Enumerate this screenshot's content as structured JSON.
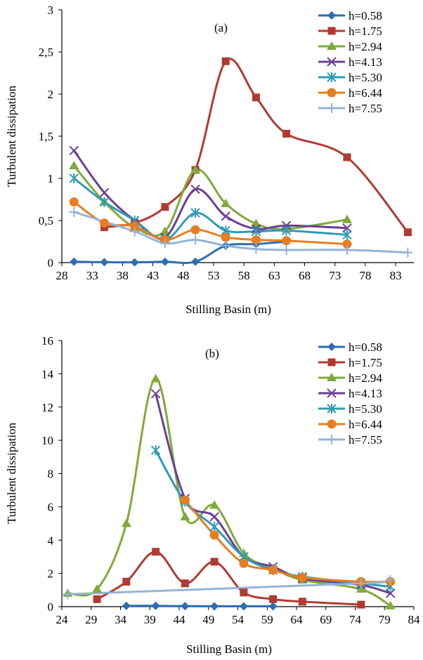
{
  "chart_data": [
    {
      "type": "line",
      "panel_label": "(a)",
      "xlabel": "Stilling Basin (m)",
      "ylabel": "Turbulent dissipation",
      "xlim": [
        28,
        86
      ],
      "ylim": [
        0,
        3
      ],
      "xticks": [
        "28",
        "33",
        "38",
        "43",
        "48",
        "53",
        "58",
        "63",
        "68",
        "73",
        "78",
        "83"
      ],
      "yticks": [
        "0",
        "0,5",
        "1",
        "1,5",
        "2",
        "2,5",
        "3"
      ],
      "legend_position": "top-right",
      "grid": false,
      "series": [
        {
          "name": "h=0.58",
          "color": "#2E6DB4",
          "marker": "diamond",
          "points": [
            [
              30,
              0.01
            ],
            [
              35,
              0.005
            ],
            [
              40,
              0.003
            ],
            [
              45,
              0.01
            ],
            [
              50,
              0.01
            ],
            [
              55,
              0.2
            ],
            [
              60,
              0.22
            ],
            [
              65,
              0.25
            ]
          ]
        },
        {
          "name": "h=1.75",
          "color": "#B03A32",
          "marker": "square",
          "points": [
            [
              35,
              0.42
            ],
            [
              40,
              0.47
            ],
            [
              45,
              0.66
            ],
            [
              50,
              1.1
            ],
            [
              55,
              2.39
            ],
            [
              60,
              1.96
            ],
            [
              65,
              1.53
            ],
            [
              75,
              1.25
            ],
            [
              85,
              0.36
            ]
          ]
        },
        {
          "name": "h=2.94",
          "color": "#7FAA3A",
          "marker": "triangle",
          "points": [
            [
              30,
              1.15
            ],
            [
              35,
              0.72
            ],
            [
              40,
              0.42
            ],
            [
              45,
              0.37
            ],
            [
              50,
              1.1
            ],
            [
              55,
              0.7
            ],
            [
              60,
              0.46
            ],
            [
              65,
              0.4
            ],
            [
              75,
              0.51
            ]
          ]
        },
        {
          "name": "h=4.13",
          "color": "#6A3F93",
          "marker": "x",
          "points": [
            [
              30,
              1.33
            ],
            [
              35,
              0.83
            ],
            [
              40,
              0.5
            ],
            [
              45,
              0.3
            ],
            [
              50,
              0.87
            ],
            [
              55,
              0.55
            ],
            [
              60,
              0.4
            ],
            [
              65,
              0.44
            ],
            [
              75,
              0.41
            ]
          ]
        },
        {
          "name": "h=5.30",
          "color": "#2F9BB5",
          "marker": "asterisk",
          "points": [
            [
              30,
              1.0
            ],
            [
              35,
              0.72
            ],
            [
              40,
              0.5
            ],
            [
              45,
              0.27
            ],
            [
              50,
              0.59
            ],
            [
              55,
              0.38
            ],
            [
              60,
              0.37
            ],
            [
              65,
              0.38
            ],
            [
              75,
              0.33
            ]
          ]
        },
        {
          "name": "h=6.44",
          "color": "#E67E22",
          "marker": "circle",
          "points": [
            [
              30,
              0.72
            ],
            [
              35,
              0.47
            ],
            [
              40,
              0.43
            ],
            [
              45,
              0.27
            ],
            [
              50,
              0.39
            ],
            [
              55,
              0.3
            ],
            [
              60,
              0.27
            ],
            [
              65,
              0.26
            ],
            [
              75,
              0.22
            ]
          ]
        },
        {
          "name": "h=7.55",
          "color": "#95B3D7",
          "marker": "plus",
          "points": [
            [
              30,
              0.6
            ],
            [
              40,
              0.37
            ],
            [
              45,
              0.23
            ],
            [
              50,
              0.27
            ],
            [
              55,
              0.2
            ],
            [
              60,
              0.16
            ],
            [
              65,
              0.15
            ],
            [
              75,
              0.15
            ],
            [
              85,
              0.12
            ]
          ]
        }
      ]
    },
    {
      "type": "line",
      "panel_label": "(b)",
      "xlabel": "Stilling Basin (m)",
      "ylabel": "Turbulent dissipation",
      "xlim": [
        24,
        84
      ],
      "ylim": [
        0,
        16
      ],
      "xticks": [
        "24",
        "29",
        "34",
        "39",
        "44",
        "49",
        "54",
        "59",
        "64",
        "69",
        "74",
        "79",
        "84"
      ],
      "yticks": [
        "0",
        "2",
        "4",
        "6",
        "8",
        "10",
        "12",
        "14",
        "16"
      ],
      "legend_position": "top-right",
      "grid": false,
      "series": [
        {
          "name": "h=0.58",
          "color": "#2E6DB4",
          "marker": "diamond",
          "points": [
            [
              35,
              0.05
            ],
            [
              40,
              0.05
            ],
            [
              45,
              0.03
            ],
            [
              50,
              0.02
            ],
            [
              55,
              0.02
            ],
            [
              60,
              0.02
            ]
          ]
        },
        {
          "name": "h=1.75",
          "color": "#B03A32",
          "marker": "square",
          "points": [
            [
              30,
              0.45
            ],
            [
              35,
              1.5
            ],
            [
              40,
              3.3
            ],
            [
              45,
              1.4
            ],
            [
              50,
              2.7
            ],
            [
              55,
              0.85
            ],
            [
              60,
              0.45
            ],
            [
              65,
              0.3
            ],
            [
              75,
              0.12
            ]
          ]
        },
        {
          "name": "h=2.94",
          "color": "#7FAA3A",
          "marker": "triangle",
          "points": [
            [
              25,
              0.8
            ],
            [
              30,
              1.05
            ],
            [
              35,
              5.0
            ],
            [
              40,
              13.7
            ],
            [
              45,
              5.4
            ],
            [
              50,
              6.1
            ],
            [
              55,
              3.2
            ],
            [
              60,
              2.3
            ],
            [
              65,
              1.6
            ],
            [
              75,
              1.05
            ],
            [
              80,
              0.05
            ]
          ]
        },
        {
          "name": "h=4.13",
          "color": "#6A3F93",
          "marker": "x",
          "points": [
            [
              40,
              12.8
            ],
            [
              45,
              6.5
            ],
            [
              50,
              5.4
            ],
            [
              55,
              3.0
            ],
            [
              60,
              2.4
            ],
            [
              65,
              1.7
            ],
            [
              75,
              1.3
            ],
            [
              80,
              0.8
            ]
          ]
        },
        {
          "name": "h=5.30",
          "color": "#2F9BB5",
          "marker": "asterisk",
          "points": [
            [
              40,
              9.4
            ],
            [
              45,
              6.3
            ],
            [
              50,
              4.8
            ],
            [
              55,
              3.0
            ],
            [
              60,
              2.2
            ],
            [
              65,
              1.8
            ],
            [
              75,
              1.4
            ],
            [
              80,
              1.2
            ]
          ]
        },
        {
          "name": "h=6.44",
          "color": "#E67E22",
          "marker": "circle",
          "points": [
            [
              45,
              6.4
            ],
            [
              50,
              4.3
            ],
            [
              55,
              2.6
            ],
            [
              60,
              2.2
            ],
            [
              65,
              1.75
            ],
            [
              75,
              1.5
            ],
            [
              80,
              1.5
            ]
          ]
        },
        {
          "name": "h=7.55",
          "color": "#95B3D7",
          "marker": "plus",
          "points": [
            [
              25,
              0.75
            ],
            [
              75,
              1.4
            ],
            [
              80,
              1.6
            ]
          ]
        }
      ]
    }
  ]
}
